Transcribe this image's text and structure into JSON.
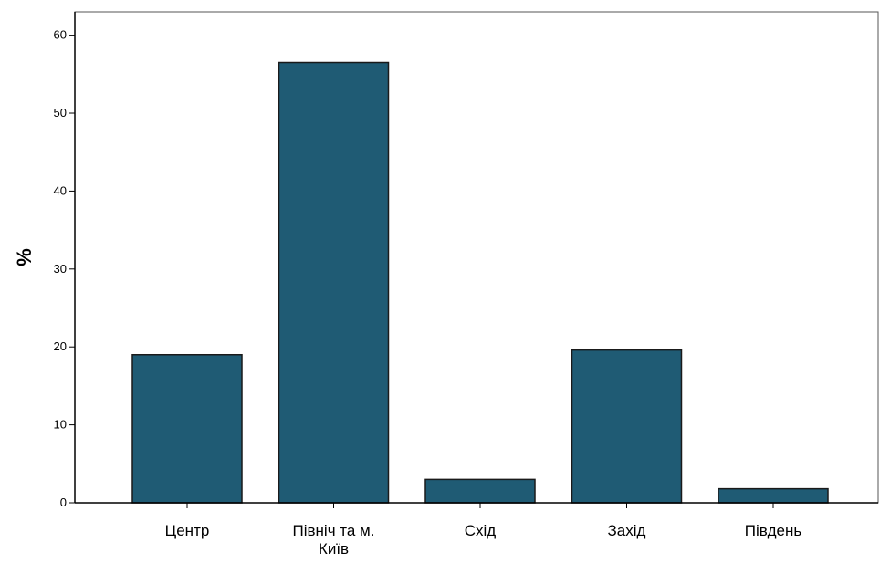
{
  "chart_data": {
    "type": "bar",
    "title": "",
    "xlabel": "",
    "ylabel": "%",
    "ylim": [
      0,
      63
    ],
    "yticks": [
      0,
      10,
      20,
      30,
      40,
      50,
      60
    ],
    "grid": false,
    "categories": [
      [
        "Центр"
      ],
      [
        "Північ та м.",
        "Київ"
      ],
      [
        "Схід"
      ],
      [
        "Захід"
      ],
      [
        "Південь"
      ]
    ],
    "values": [
      19,
      56.5,
      3,
      19.6,
      1.8
    ],
    "colors": {
      "bar_fill": "#1f5b74",
      "bar_stroke": "#1a1a1a",
      "axis": "#000000",
      "frame": "#555555"
    }
  }
}
